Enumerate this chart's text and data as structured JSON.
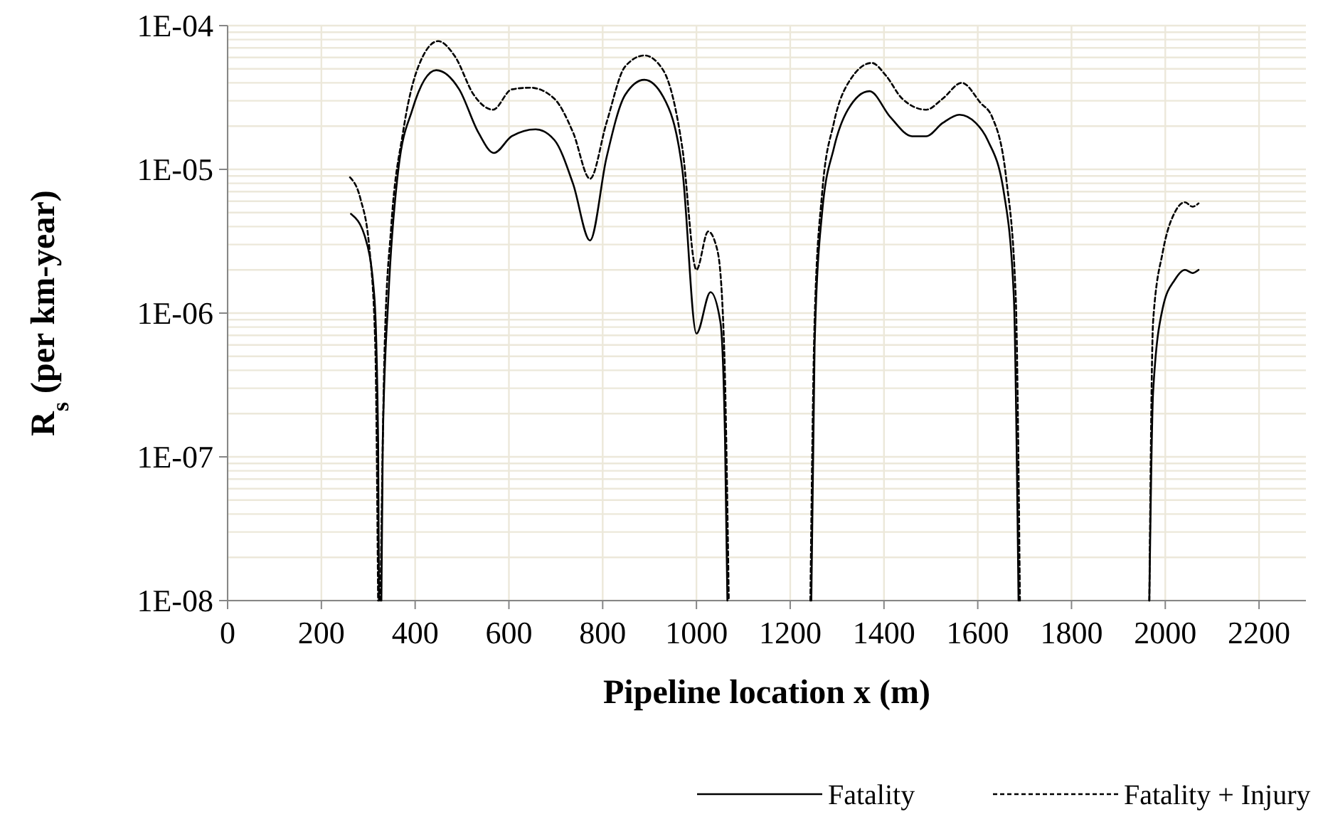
{
  "chart_data": {
    "type": "line",
    "xlabel": "Pipeline location x (m)",
    "ylabel": "R$_{s}$ (per km-year)",
    "xlim": [
      0,
      2300
    ],
    "xticks": [
      0,
      200,
      400,
      600,
      800,
      1000,
      1200,
      1400,
      1600,
      1800,
      2000,
      2200
    ],
    "log": "y",
    "ylim": [
      1e-08,
      0.0001
    ],
    "yticks": [
      {
        "value": 1e-08,
        "label": "1E-08"
      },
      {
        "value": 2e-08,
        "label": null
      },
      {
        "value": 3e-08,
        "label": null
      },
      {
        "value": 4e-08,
        "label": null
      },
      {
        "value": 5e-08,
        "label": null
      },
      {
        "value": 6e-08,
        "label": null
      },
      {
        "value": 7e-08,
        "label": null
      },
      {
        "value": 8e-08,
        "label": null
      },
      {
        "value": 9e-08,
        "label": null
      },
      {
        "value": 1e-07,
        "label": "1E-07"
      },
      {
        "value": 2e-07,
        "label": null
      },
      {
        "value": 3e-07,
        "label": null
      },
      {
        "value": 4e-07,
        "label": null
      },
      {
        "value": 5e-07,
        "label": null
      },
      {
        "value": 6e-07,
        "label": null
      },
      {
        "value": 7e-07,
        "label": null
      },
      {
        "value": 8e-07,
        "label": null
      },
      {
        "value": 9e-07,
        "label": null
      },
      {
        "value": 1e-06,
        "label": "1E-06"
      },
      {
        "value": 2e-06,
        "label": null
      },
      {
        "value": 3e-06,
        "label": null
      },
      {
        "value": 4e-06,
        "label": null
      },
      {
        "value": 5e-06,
        "label": null
      },
      {
        "value": 6e-06,
        "label": null
      },
      {
        "value": 7e-06,
        "label": null
      },
      {
        "value": 8e-06,
        "label": null
      },
      {
        "value": 9e-06,
        "label": null
      },
      {
        "value": 1e-05,
        "label": "1E-05"
      },
      {
        "value": 2e-05,
        "label": null
      },
      {
        "value": 3e-05,
        "label": null
      },
      {
        "value": 4e-05,
        "label": null
      },
      {
        "value": 5e-05,
        "label": null
      },
      {
        "value": 6e-05,
        "label": null
      },
      {
        "value": 7e-05,
        "label": null
      },
      {
        "value": 8e-05,
        "label": null
      },
      {
        "value": 9e-05,
        "label": null
      },
      {
        "value": 0.0001,
        "label": "1E-04"
      }
    ],
    "grid": true,
    "legend": "bottom",
    "series": [
      {
        "name": "Fatality",
        "color": "#000000",
        "line_style": "solid",
        "x": [
          263,
          293,
          313,
          321,
          323
        ],
        "values": [
          4.9e-06,
          3.4e-06,
          1.3e-06,
          1.3e-07,
          1e-08
        ]
      },
      {
        "name": "Fatality + Injury",
        "color": "#000000",
        "line_style": "dashed",
        "x": [
          261,
          283,
          303,
          315,
          321
        ],
        "values": [
          8.8e-06,
          6.3e-06,
          2.7e-06,
          5.9e-07,
          1e-08
        ]
      },
      {
        "color": "#000000",
        "line_style": "solid",
        "x": [
          328,
          331,
          343,
          364,
          394,
          445,
          494,
          535,
          568,
          606,
          657,
          697,
          737,
          773,
          808,
          848,
          889,
          929,
          970,
          1000,
          1030,
          1051,
          1061,
          1066
        ],
        "values": [
          1e-08,
          1.3e-07,
          1.3e-06,
          9.9e-06,
          2.6e-05,
          4.9e-05,
          3.6e-05,
          1.8e-05,
          1.3e-05,
          1.7e-05,
          1.9e-05,
          1.6e-05,
          7.9e-06,
          3.2e-06,
          1.2e-05,
          3.3e-05,
          4.2e-05,
          3.2e-05,
          9.9e-06,
          7.2e-07,
          1.4e-06,
          8.7e-07,
          1.3e-07,
          1e-08
        ]
      },
      {
        "color": "#000000",
        "line_style": "dashed",
        "x": [
          326,
          335,
          349,
          374,
          404,
          449,
          485,
          525,
          566,
          606,
          646,
          697,
          737,
          773,
          808,
          848,
          889,
          929,
          970,
          1000,
          1025,
          1045,
          1059,
          1069
        ],
        "values": [
          1e-08,
          5.9e-07,
          4e-06,
          1.8e-05,
          4.9e-05,
          7.8e-05,
          6.1e-05,
          3.3e-05,
          2.6e-05,
          3.6e-05,
          3.7e-05,
          3.1e-05,
          1.8e-05,
          8.6e-06,
          2.1e-05,
          5.2e-05,
          6.2e-05,
          4.9e-05,
          1.4e-05,
          2e-06,
          3.7e-06,
          2.7e-06,
          5.9e-07,
          1e-08
        ]
      },
      {
        "color": "#000000",
        "line_style": "solid",
        "x": [
          1245,
          1252,
          1268,
          1293,
          1323,
          1369,
          1414,
          1460,
          1490,
          1525,
          1561,
          1596,
          1621,
          1656,
          1677,
          1687
        ],
        "values": [
          1e-08,
          5.9e-07,
          5e-06,
          1.4e-05,
          2.6e-05,
          3.5e-05,
          2.3e-05,
          1.7e-05,
          1.7e-05,
          2.1e-05,
          2.4e-05,
          2.1e-05,
          1.6e-05,
          6.8e-06,
          1.3e-06,
          1e-08
        ]
      },
      {
        "color": "#000000",
        "line_style": "dashed",
        "x": [
          1243,
          1252,
          1268,
          1293,
          1328,
          1374,
          1404,
          1439,
          1490,
          1525,
          1566,
          1606,
          1631,
          1661,
          1681,
          1690
        ],
        "values": [
          1e-08,
          8.7e-07,
          6.8e-06,
          2.1e-05,
          4.2e-05,
          5.5e-05,
          4.5e-05,
          3.1e-05,
          2.6e-05,
          3.1e-05,
          4e-05,
          2.9e-05,
          2.3e-05,
          8.5e-06,
          1.3e-06,
          1e-08
        ]
      },
      {
        "color": "#000000",
        "line_style": "solid",
        "x": [
          1966,
          1974,
          1995,
          2020,
          2042,
          2058,
          2071
        ],
        "values": [
          1e-08,
          2.8e-07,
          1.1e-06,
          1.7e-06,
          2e-06,
          1.9e-06,
          2e-06
        ]
      },
      {
        "color": "#000000",
        "line_style": "dashed",
        "x": [
          1966,
          1974,
          1995,
          2020,
          2042,
          2058,
          2071
        ],
        "values": [
          1e-08,
          8.7e-07,
          2.7e-06,
          5e-06,
          5.9e-06,
          5.5e-06,
          5.8e-06
        ]
      }
    ]
  }
}
